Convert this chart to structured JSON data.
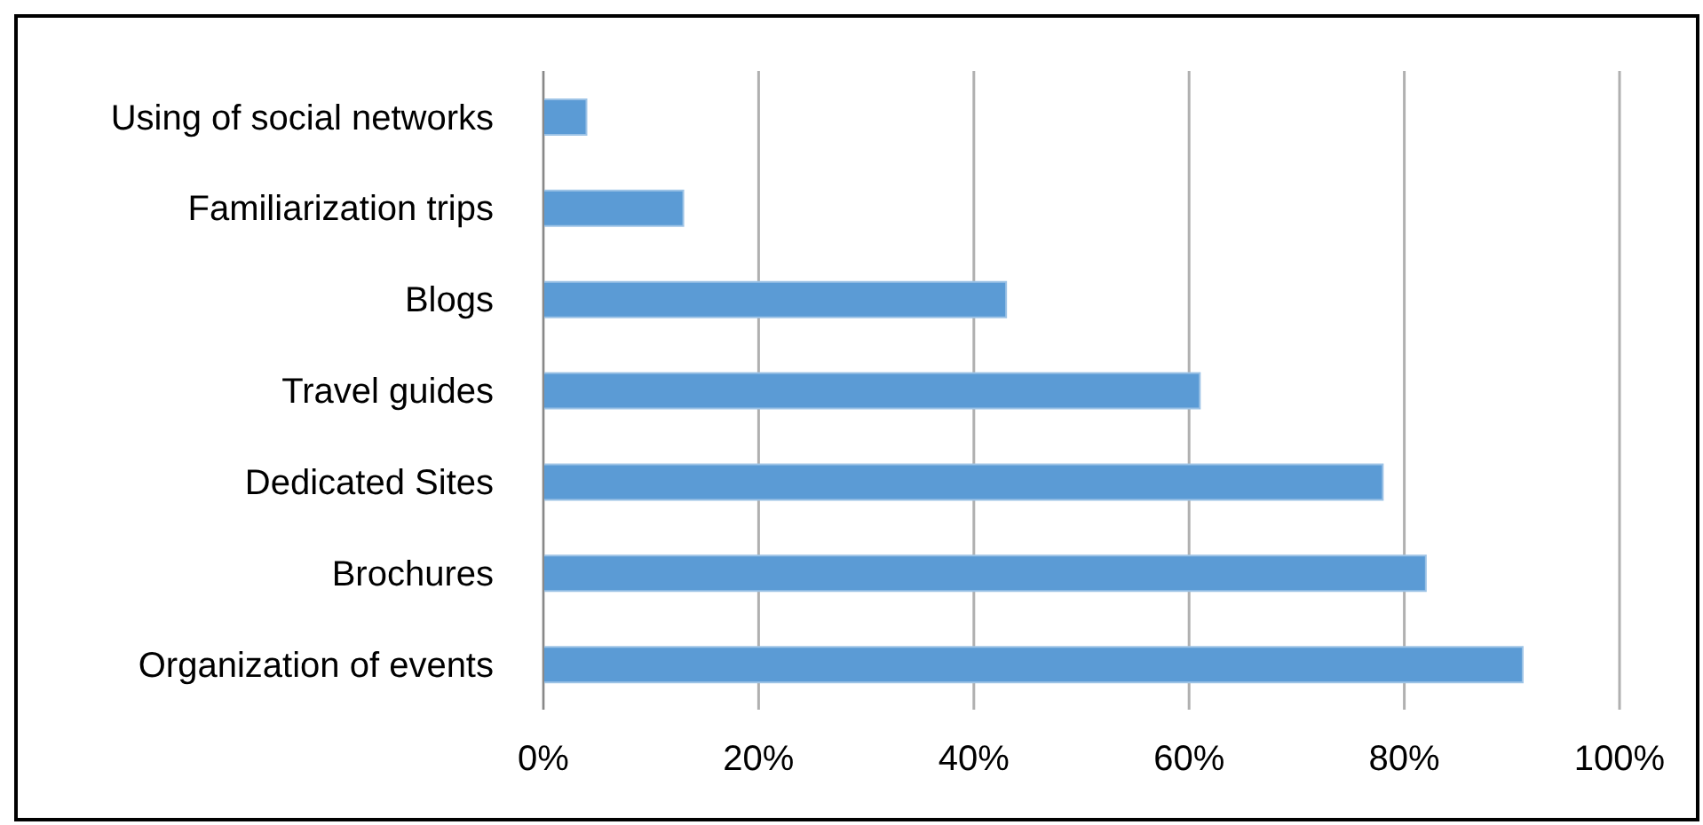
{
  "chart_data": {
    "type": "bar",
    "orientation": "horizontal",
    "categories": [
      "Using of social networks",
      "Familiarization trips",
      "Blogs",
      "Travel guides",
      "Dedicated Sites ",
      "Brochures",
      "Organization of events"
    ],
    "values": [
      4,
      13,
      43,
      61,
      78,
      82,
      91
    ],
    "color": "#5b9bd5",
    "xlim": [
      0,
      100
    ],
    "xticks": [
      {
        "value": 0,
        "label": "0%"
      },
      {
        "value": 20,
        "label": "20%"
      },
      {
        "value": 40,
        "label": "40%"
      },
      {
        "value": 60,
        "label": "60%"
      },
      {
        "value": 80,
        "label": "80%"
      },
      {
        "value": 100,
        "label": "100%"
      }
    ],
    "grid": "x"
  }
}
